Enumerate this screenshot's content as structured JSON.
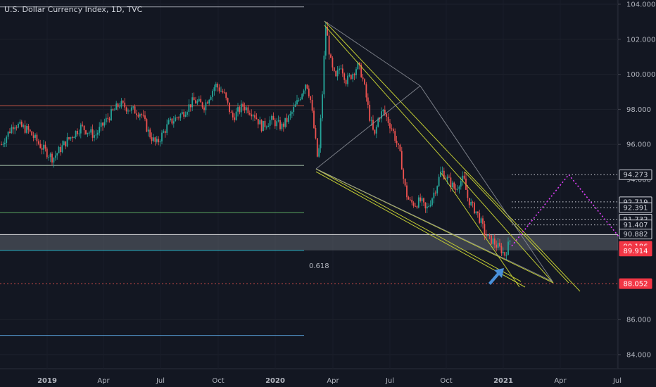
{
  "chart_data": {
    "type": "candlestick",
    "title": "U.S. Dollar Currency Index, 1D, TVC",
    "y_axis": {
      "ticks": [
        "104.000",
        "102.000",
        "100.000",
        "98.000",
        "96.000",
        "94.000",
        "86.000",
        "84.000"
      ],
      "tick_values": [
        104,
        102,
        100,
        98,
        96,
        94,
        86,
        84
      ],
      "range": [
        83.4,
        104.2
      ]
    },
    "x_axis": {
      "ticks": [
        "2019",
        "Apr",
        "Jul",
        "Oct",
        "2020",
        "Apr",
        "Jul",
        "Oct",
        "2021",
        "Apr",
        "Jul"
      ],
      "bold_ticks": [
        "2019",
        "2020",
        "2021"
      ]
    },
    "price_tags": [
      {
        "label": "94.273",
        "value": 94.273,
        "style": "white"
      },
      {
        "label": "92.719",
        "value": 92.719,
        "style": "white"
      },
      {
        "label": "92.391",
        "value": 92.391,
        "style": "white"
      },
      {
        "label": "91.732",
        "value": 91.732,
        "style": "white"
      },
      {
        "label": "91.407",
        "value": 91.407,
        "style": "white"
      },
      {
        "label": "90.882",
        "value": 90.882,
        "style": "white"
      },
      {
        "label": "90.186",
        "value": 90.186,
        "style": "red"
      },
      {
        "label": "89.914",
        "value": 89.914,
        "style": "red"
      },
      {
        "label": "88.052",
        "value": 88.052,
        "style": "red"
      }
    ],
    "fib_label": "0.618",
    "horizontal_levels": [
      {
        "value": 103.85,
        "color": "#b2b5be"
      },
      {
        "value": 98.2,
        "color": "#f0634f"
      },
      {
        "value": 94.8,
        "color": "#c8e6c9"
      },
      {
        "value": 92.1,
        "color": "#66bb6a"
      },
      {
        "value": 90.85,
        "color": "#ffffff"
      },
      {
        "value": 89.95,
        "color": "#26c6da"
      },
      {
        "value": 88.05,
        "color": "#ef5350"
      },
      {
        "value": 85.1,
        "color": "#64b5f6"
      }
    ],
    "projection_path": [
      90.2,
      94.273,
      91.5
    ],
    "colors": {
      "up": "#26a69a",
      "down": "#ef5350",
      "trend": "#c0ca33",
      "gray_line": "#9598a1",
      "projection": "#e040fb",
      "arrow": "#4a90d9",
      "zone": "#8a8e99"
    }
  }
}
